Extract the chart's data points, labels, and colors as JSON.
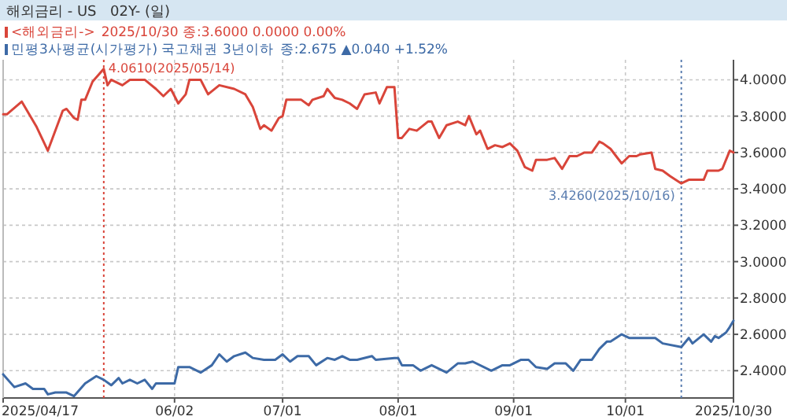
{
  "chart_data": {
    "type": "line",
    "title": "해외금리 - US",
    "subtitle": "02Y- (일)",
    "xlim": [
      "2025-04-17",
      "2025-10-30"
    ],
    "xticks": [
      {
        "value": "2025-04-17",
        "label": "2025/04/17"
      },
      {
        "value": "2025-06-02",
        "label": "06/02"
      },
      {
        "value": "2025-07-01",
        "label": "07/01"
      },
      {
        "value": "2025-08-01",
        "label": "08/01"
      },
      {
        "value": "2025-09-01",
        "label": "09/01"
      },
      {
        "value": "2025-10-01",
        "label": "10/01"
      },
      {
        "value": "2025-10-30",
        "label": "2025/10/30"
      }
    ],
    "ylim": [
      2.25,
      4.11
    ],
    "yticks": [
      {
        "value": 2.4,
        "label": "2.4000"
      },
      {
        "value": 2.6,
        "label": "2.6000"
      },
      {
        "value": 2.8,
        "label": "2.8000"
      },
      {
        "value": 3.0,
        "label": "3.0000"
      },
      {
        "value": 3.2,
        "label": "3.2000"
      },
      {
        "value": 3.4,
        "label": "3.4000"
      },
      {
        "value": 3.6,
        "label": "3.6000"
      },
      {
        "value": 3.8,
        "label": "3.8000"
      },
      {
        "value": 4.0,
        "label": "4.0000"
      }
    ],
    "grid": true,
    "legend": "top left",
    "marker": "none",
    "line_style": "solid",
    "series": [
      {
        "name": "<해외금리->",
        "color": "#d9453a",
        "x": [
          "2025-04-17",
          "2025-04-18",
          "2025-04-22",
          "2025-04-26",
          "2025-04-29",
          "2025-05-03",
          "2025-05-04",
          "2025-05-06",
          "2025-05-07",
          "2025-05-08",
          "2025-05-09",
          "2025-05-11",
          "2025-05-14",
          "2025-05-15",
          "2025-05-16",
          "2025-05-19",
          "2025-05-21",
          "2025-05-23",
          "2025-05-25",
          "2025-05-28",
          "2025-05-30",
          "2025-06-01",
          "2025-06-03",
          "2025-06-05",
          "2025-06-06",
          "2025-06-09",
          "2025-06-11",
          "2025-06-14",
          "2025-06-18",
          "2025-06-21",
          "2025-06-23",
          "2025-06-25",
          "2025-06-26",
          "2025-06-28",
          "2025-06-30",
          "2025-07-01",
          "2025-07-02",
          "2025-07-04",
          "2025-07-06",
          "2025-07-08",
          "2025-07-09",
          "2025-07-12",
          "2025-07-13",
          "2025-07-15",
          "2025-07-17",
          "2025-07-19",
          "2025-07-21",
          "2025-07-23",
          "2025-07-26",
          "2025-07-27",
          "2025-07-29",
          "2025-07-31",
          "2025-08-01",
          "2025-08-02",
          "2025-08-04",
          "2025-08-06",
          "2025-08-09",
          "2025-08-10",
          "2025-08-12",
          "2025-08-14",
          "2025-08-17",
          "2025-08-19",
          "2025-08-20",
          "2025-08-22",
          "2025-08-23",
          "2025-08-25",
          "2025-08-27",
          "2025-08-29",
          "2025-08-31",
          "2025-09-02",
          "2025-09-04",
          "2025-09-06",
          "2025-09-07",
          "2025-09-10",
          "2025-09-12",
          "2025-09-14",
          "2025-09-16",
          "2025-09-18",
          "2025-09-20",
          "2025-09-22",
          "2025-09-24",
          "2025-09-25",
          "2025-09-27",
          "2025-09-30",
          "2025-10-02",
          "2025-10-04",
          "2025-10-05",
          "2025-10-08",
          "2025-10-09",
          "2025-10-11",
          "2025-10-13",
          "2025-10-16",
          "2025-10-18",
          "2025-10-22",
          "2025-10-23",
          "2025-10-26",
          "2025-10-27",
          "2025-10-29",
          "2025-10-30"
        ],
        "values": [
          3.81,
          3.81,
          3.88,
          3.74,
          3.61,
          3.83,
          3.84,
          3.79,
          3.78,
          3.89,
          3.89,
          3.99,
          4.06,
          3.97,
          4.0,
          3.97,
          4.0,
          4.0,
          4.0,
          3.95,
          3.91,
          3.95,
          3.87,
          3.92,
          4.0,
          4.0,
          3.92,
          3.97,
          3.95,
          3.92,
          3.85,
          3.73,
          3.75,
          3.72,
          3.79,
          3.8,
          3.89,
          3.89,
          3.89,
          3.86,
          3.89,
          3.91,
          3.95,
          3.9,
          3.89,
          3.87,
          3.84,
          3.92,
          3.93,
          3.87,
          3.96,
          3.96,
          3.68,
          3.68,
          3.73,
          3.72,
          3.77,
          3.77,
          3.68,
          3.75,
          3.77,
          3.75,
          3.8,
          3.7,
          3.72,
          3.62,
          3.64,
          3.63,
          3.65,
          3.61,
          3.52,
          3.5,
          3.56,
          3.56,
          3.57,
          3.51,
          3.58,
          3.58,
          3.6,
          3.6,
          3.66,
          3.65,
          3.62,
          3.54,
          3.58,
          3.58,
          3.59,
          3.6,
          3.51,
          3.5,
          3.47,
          3.43,
          3.45,
          3.45,
          3.5,
          3.5,
          3.51,
          3.61,
          3.6
        ]
      },
      {
        "name": "민평3사평균(시가평가) 국고채권 3년이하",
        "color": "#3d6aa6",
        "x": [
          "2025-04-17",
          "2025-04-20",
          "2025-04-23",
          "2025-04-25",
          "2025-04-28",
          "2025-04-29",
          "2025-05-01",
          "2025-05-04",
          "2025-05-06",
          "2025-05-09",
          "2025-05-12",
          "2025-05-14",
          "2025-05-16",
          "2025-05-18",
          "2025-05-19",
          "2025-05-21",
          "2025-05-23",
          "2025-05-25",
          "2025-05-27",
          "2025-05-28",
          "2025-06-02",
          "2025-06-03",
          "2025-06-06",
          "2025-06-09",
          "2025-06-12",
          "2025-06-14",
          "2025-06-16",
          "2025-06-18",
          "2025-06-21",
          "2025-06-23",
          "2025-06-26",
          "2025-06-29",
          "2025-07-01",
          "2025-07-03",
          "2025-07-05",
          "2025-07-08",
          "2025-07-10",
          "2025-07-13",
          "2025-07-15",
          "2025-07-17",
          "2025-07-19",
          "2025-07-21",
          "2025-07-25",
          "2025-07-26",
          "2025-07-31",
          "2025-08-01",
          "2025-08-02",
          "2025-08-05",
          "2025-08-07",
          "2025-08-10",
          "2025-08-14",
          "2025-08-17",
          "2025-08-19",
          "2025-08-21",
          "2025-08-26",
          "2025-08-29",
          "2025-08-31",
          "2025-09-03",
          "2025-09-05",
          "2025-09-07",
          "2025-09-10",
          "2025-09-12",
          "2025-09-15",
          "2025-09-17",
          "2025-09-19",
          "2025-09-22",
          "2025-09-24",
          "2025-09-26",
          "2025-09-27",
          "2025-09-30",
          "2025-10-02",
          "2025-10-09",
          "2025-10-11",
          "2025-10-16",
          "2025-10-18",
          "2025-10-19",
          "2025-10-22",
          "2025-10-24",
          "2025-10-25",
          "2025-10-26",
          "2025-10-28",
          "2025-10-29",
          "2025-10-30"
        ],
        "values": [
          2.38,
          2.31,
          2.33,
          2.3,
          2.3,
          2.27,
          2.28,
          2.28,
          2.26,
          2.33,
          2.37,
          2.35,
          2.32,
          2.36,
          2.33,
          2.35,
          2.33,
          2.35,
          2.3,
          2.33,
          2.33,
          2.42,
          2.42,
          2.39,
          2.43,
          2.49,
          2.45,
          2.48,
          2.5,
          2.47,
          2.46,
          2.46,
          2.49,
          2.45,
          2.48,
          2.48,
          2.43,
          2.47,
          2.46,
          2.48,
          2.46,
          2.46,
          2.48,
          2.46,
          2.47,
          2.47,
          2.43,
          2.43,
          2.4,
          2.43,
          2.39,
          2.44,
          2.44,
          2.45,
          2.4,
          2.43,
          2.43,
          2.46,
          2.46,
          2.42,
          2.41,
          2.44,
          2.44,
          2.4,
          2.46,
          2.46,
          2.52,
          2.56,
          2.56,
          2.6,
          2.58,
          2.58,
          2.55,
          2.53,
          2.58,
          2.55,
          2.6,
          2.56,
          2.59,
          2.58,
          2.61,
          2.64,
          2.675
        ]
      }
    ],
    "ref_lines": [
      {
        "axis": "x",
        "value": "2025-05-14",
        "label": "4.0610(2025/05/14)",
        "color": "#d9453a",
        "line_style": "dotted"
      },
      {
        "axis": "x",
        "value": "2025-10-16",
        "label": "3.4260(2025/10/16)",
        "color": "#5a7db0",
        "line_style": "dotted"
      }
    ],
    "annotations": [
      "2025/10/30 종:3.6000  0.0000 0.00%",
      "종:2.675 ▲0.040 +1.52%"
    ]
  }
}
